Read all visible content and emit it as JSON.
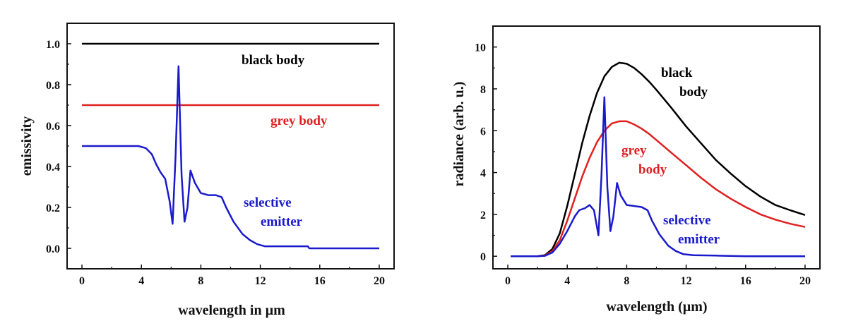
{
  "chart_data": [
    {
      "type": "line",
      "title": "",
      "xlabel": "wavelength in µm",
      "ylabel": "emissivity",
      "xlim": [
        -1,
        21
      ],
      "ylim": [
        -0.1,
        1.1
      ],
      "xticks": [
        "0",
        "4",
        "8",
        "12",
        "16",
        "20"
      ],
      "yticks": [
        "0.0",
        "0.2",
        "0.4",
        "0.6",
        "0.8",
        "1.0"
      ],
      "grid": false,
      "series": [
        {
          "name": "black body",
          "color": "#000000",
          "x": [
            0,
            20
          ],
          "y": [
            1.0,
            1.0
          ]
        },
        {
          "name": "grey body",
          "color": "#e02020",
          "x": [
            0,
            20
          ],
          "y": [
            0.7,
            0.7
          ]
        },
        {
          "name": "selective emitter",
          "color": "#1a1acc",
          "x": [
            0,
            2,
            3.8,
            4.3,
            4.7,
            5.0,
            5.3,
            5.6,
            5.9,
            6.1,
            6.3,
            6.5,
            6.7,
            6.9,
            7.1,
            7.3,
            7.6,
            8.0,
            8.5,
            9.0,
            9.4,
            9.7,
            10.2,
            10.8,
            11.3,
            11.8,
            12.3,
            12.8,
            13.5,
            15.2,
            15.3,
            17,
            20
          ],
          "y": [
            0.5,
            0.5,
            0.5,
            0.49,
            0.46,
            0.41,
            0.37,
            0.34,
            0.23,
            0.12,
            0.45,
            0.89,
            0.36,
            0.13,
            0.2,
            0.38,
            0.32,
            0.27,
            0.26,
            0.26,
            0.25,
            0.2,
            0.13,
            0.07,
            0.04,
            0.02,
            0.01,
            0.01,
            0.01,
            0.01,
            0.0,
            0.0,
            0.0
          ]
        }
      ],
      "annotations": {
        "black": "black body",
        "grey": "grey body",
        "sel1": "selective",
        "sel2": "emitter"
      }
    },
    {
      "type": "line",
      "title": "",
      "xlabel": "wavelength (µm)",
      "ylabel": "radiance (arb. u.)",
      "xlim": [
        -1,
        21
      ],
      "ylim": [
        -0.6,
        11
      ],
      "xticks": [
        "0",
        "4",
        "8",
        "12",
        "16",
        "20"
      ],
      "yticks": [
        "0",
        "2",
        "4",
        "6",
        "8",
        "10"
      ],
      "grid": false,
      "series": [
        {
          "name": "black body",
          "color": "#000000",
          "x": [
            0.2,
            2,
            2.5,
            3,
            3.5,
            4,
            4.5,
            5,
            5.5,
            6,
            6.5,
            7,
            7.5,
            8,
            8.5,
            9,
            9.5,
            10,
            11,
            12,
            13,
            14,
            15,
            16,
            17,
            18,
            19,
            20
          ],
          "y": [
            0,
            0,
            0.05,
            0.35,
            1.1,
            2.4,
            3.9,
            5.4,
            6.7,
            7.8,
            8.6,
            9.05,
            9.25,
            9.2,
            9.0,
            8.7,
            8.35,
            7.95,
            7.1,
            6.2,
            5.4,
            4.6,
            3.95,
            3.35,
            2.85,
            2.45,
            2.2,
            1.97
          ]
        },
        {
          "name": "grey body",
          "color": "#e02020",
          "x": [
            0.2,
            2,
            2.5,
            3,
            3.5,
            4,
            4.5,
            5,
            5.5,
            6,
            6.5,
            7,
            7.5,
            8,
            8.5,
            9,
            9.5,
            10,
            11,
            12,
            13,
            14,
            15,
            16,
            17,
            18,
            19,
            20
          ],
          "y": [
            0,
            0,
            0.03,
            0.25,
            0.77,
            1.7,
            2.75,
            3.8,
            4.7,
            5.45,
            6.0,
            6.35,
            6.45,
            6.45,
            6.3,
            6.1,
            5.85,
            5.55,
            4.95,
            4.35,
            3.75,
            3.2,
            2.75,
            2.35,
            2.0,
            1.75,
            1.55,
            1.4
          ]
        },
        {
          "name": "selective emitter",
          "color": "#1a1acc",
          "x": [
            0.2,
            2,
            2.5,
            3,
            3.5,
            4,
            4.5,
            4.8,
            5.2,
            5.5,
            5.8,
            6.1,
            6.3,
            6.5,
            6.7,
            6.9,
            7.1,
            7.35,
            7.6,
            8.0,
            8.5,
            9.0,
            9.4,
            9.7,
            10.2,
            10.8,
            11.3,
            11.8,
            12.5,
            14,
            16,
            18,
            20
          ],
          "y": [
            0,
            0,
            0.02,
            0.18,
            0.6,
            1.2,
            1.9,
            2.2,
            2.3,
            2.45,
            2.2,
            1.0,
            3.8,
            7.6,
            3.3,
            1.2,
            1.9,
            3.5,
            2.9,
            2.45,
            2.4,
            2.35,
            2.2,
            1.7,
            1.05,
            0.5,
            0.25,
            0.1,
            0.05,
            0.03,
            0.0,
            0.0,
            0.0
          ]
        }
      ],
      "annotations": {
        "black1": "black",
        "black2": "body",
        "grey1": "grey",
        "grey2": "body",
        "sel1": "selective",
        "sel2": "emitter"
      }
    }
  ]
}
